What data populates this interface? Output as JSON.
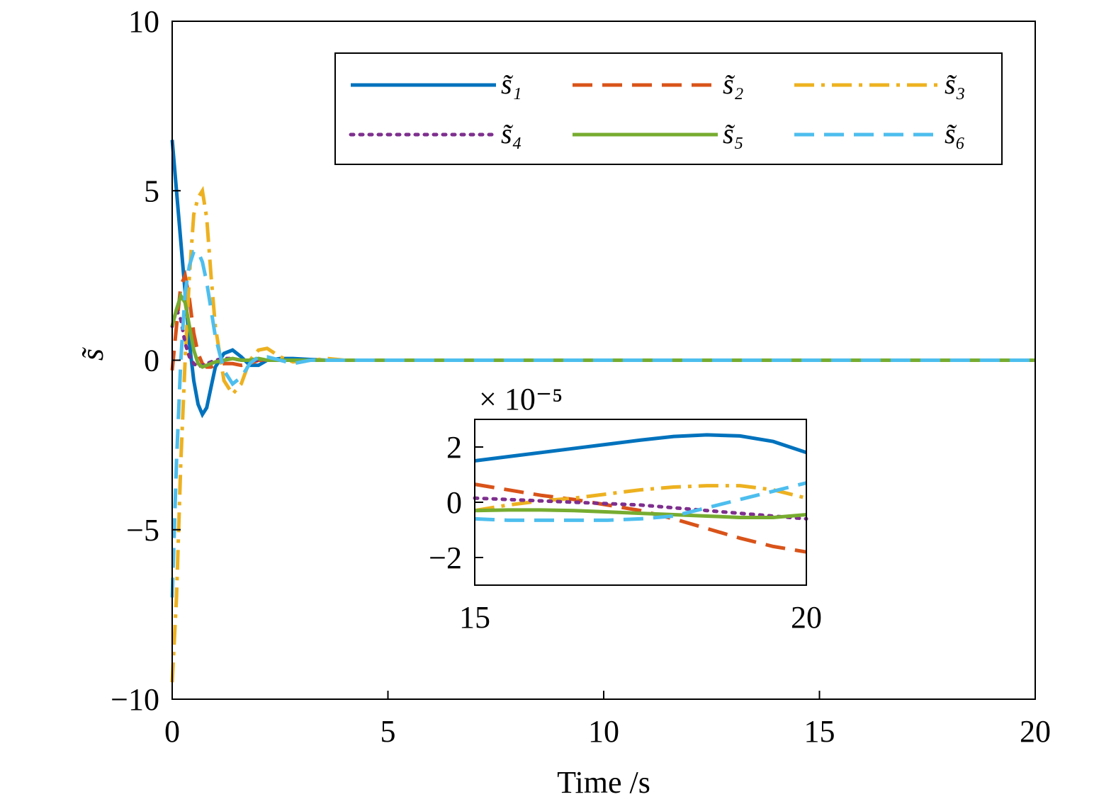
{
  "chart_data": [
    {
      "type": "line",
      "xlabel": "Time /s",
      "ylabel": "s̃",
      "xlim": [
        0,
        20
      ],
      "ylim": [
        -10,
        10
      ],
      "xticks": [
        0,
        5,
        10,
        15,
        20
      ],
      "yticks": [
        {
          "value": -10,
          "label": "−10"
        },
        {
          "value": -5,
          "label": "−5"
        },
        0,
        5,
        10
      ],
      "legend": "upper right",
      "legend_columns": 3,
      "x": [
        0,
        0.1,
        0.2,
        0.3,
        0.4,
        0.5,
        0.6,
        0.7,
        0.8,
        0.9,
        1.0,
        1.2,
        1.4,
        1.6,
        1.8,
        2.0,
        2.2,
        2.5,
        2.8,
        3.2,
        3.6,
        4,
        6,
        10,
        15,
        20
      ],
      "series": [
        {
          "name": "s̃₁",
          "color": "#0072bd",
          "style": "solid",
          "values": [
            6.5,
            5,
            3.5,
            2,
            0.5,
            -0.6,
            -1.3,
            -1.6,
            -1.4,
            -0.8,
            -0.2,
            0.2,
            0.3,
            0.1,
            -0.15,
            -0.15,
            0,
            0.05,
            0.05,
            0.02,
            0,
            0,
            0,
            0,
            0,
            0
          ]
        },
        {
          "name": "s̃₂",
          "color": "#d95319",
          "style": "dashed",
          "values": [
            -0.3,
            1,
            2.2,
            2.5,
            1.8,
            0.8,
            0.2,
            -0.1,
            -0.2,
            -0.2,
            -0.15,
            -0.1,
            -0.1,
            -0.15,
            -0.1,
            0,
            0,
            0,
            0,
            0,
            0,
            0,
            0,
            0,
            0,
            0
          ]
        },
        {
          "name": "s̃₃",
          "color": "#edb120",
          "style": "dashdot",
          "values": [
            -9.5,
            -7,
            -3,
            0,
            2.5,
            4.3,
            4.8,
            5.0,
            4.2,
            2.5,
            1.0,
            -0.6,
            -1.0,
            -0.7,
            0,
            0.3,
            0.35,
            0.1,
            -0.05,
            0,
            0.05,
            0,
            0,
            0,
            0,
            0
          ]
        },
        {
          "name": "s̃₄",
          "color": "#7e2f8e",
          "style": "dotted",
          "values": [
            1,
            1.5,
            1.2,
            0.5,
            0.1,
            -0.1,
            -0.2,
            -0.15,
            -0.1,
            -0.05,
            0,
            0.05,
            0.05,
            0,
            0,
            0,
            0,
            0,
            0,
            0,
            0,
            0,
            0,
            0,
            0,
            0
          ]
        },
        {
          "name": "s̃₅",
          "color": "#77ac30",
          "style": "solid",
          "values": [
            1,
            1.5,
            1.9,
            1.7,
            1.0,
            0.3,
            -0.1,
            -0.2,
            -0.15,
            -0.1,
            -0.05,
            0,
            0.05,
            0,
            0,
            0.05,
            0,
            0,
            0,
            0,
            0,
            0,
            0,
            0,
            0,
            0
          ]
        },
        {
          "name": "s̃₆",
          "color": "#4dbeee",
          "style": "dashed",
          "values": [
            -7,
            -3,
            0,
            2,
            2.8,
            3.2,
            3.2,
            2.9,
            2.3,
            1.5,
            0.7,
            -0.3,
            -0.7,
            -0.5,
            -0.1,
            0.1,
            0.1,
            0,
            -0.1,
            0,
            0,
            0,
            0,
            0,
            0,
            0
          ]
        }
      ]
    },
    {
      "type": "line",
      "multiplier": "× 10⁻⁵",
      "xlim": [
        15,
        20
      ],
      "ylim": [
        -3,
        3
      ],
      "xticks": [
        15,
        20
      ],
      "yticks": [
        {
          "value": -2,
          "label": "−2"
        },
        0,
        2
      ],
      "x": [
        15,
        15.5,
        16,
        16.5,
        17,
        17.5,
        18,
        18.5,
        19,
        19.5,
        20
      ],
      "series": [
        {
          "color": "#0072bd",
          "style": "solid",
          "values": [
            1.5,
            1.65,
            1.8,
            1.95,
            2.1,
            2.25,
            2.38,
            2.44,
            2.4,
            2.2,
            1.8
          ]
        },
        {
          "color": "#d95319",
          "style": "dashed",
          "values": [
            0.65,
            0.45,
            0.25,
            0.1,
            -0.1,
            -0.3,
            -0.6,
            -0.95,
            -1.3,
            -1.6,
            -1.8
          ]
        },
        {
          "color": "#edb120",
          "style": "dashdot",
          "values": [
            -0.3,
            -0.1,
            0.05,
            0.15,
            0.3,
            0.45,
            0.55,
            0.6,
            0.6,
            0.45,
            0.15
          ]
        },
        {
          "color": "#7e2f8e",
          "style": "dotted",
          "values": [
            0.15,
            0.1,
            0.05,
            0,
            -0.05,
            -0.1,
            -0.2,
            -0.3,
            -0.4,
            -0.5,
            -0.6
          ]
        },
        {
          "color": "#77ac30",
          "style": "solid",
          "values": [
            -0.3,
            -0.28,
            -0.28,
            -0.3,
            -0.35,
            -0.4,
            -0.45,
            -0.5,
            -0.55,
            -0.55,
            -0.45
          ]
        },
        {
          "color": "#4dbeee",
          "style": "dashed",
          "values": [
            -0.6,
            -0.65,
            -0.65,
            -0.65,
            -0.65,
            -0.6,
            -0.5,
            -0.2,
            0.1,
            0.4,
            0.7
          ]
        }
      ]
    }
  ]
}
